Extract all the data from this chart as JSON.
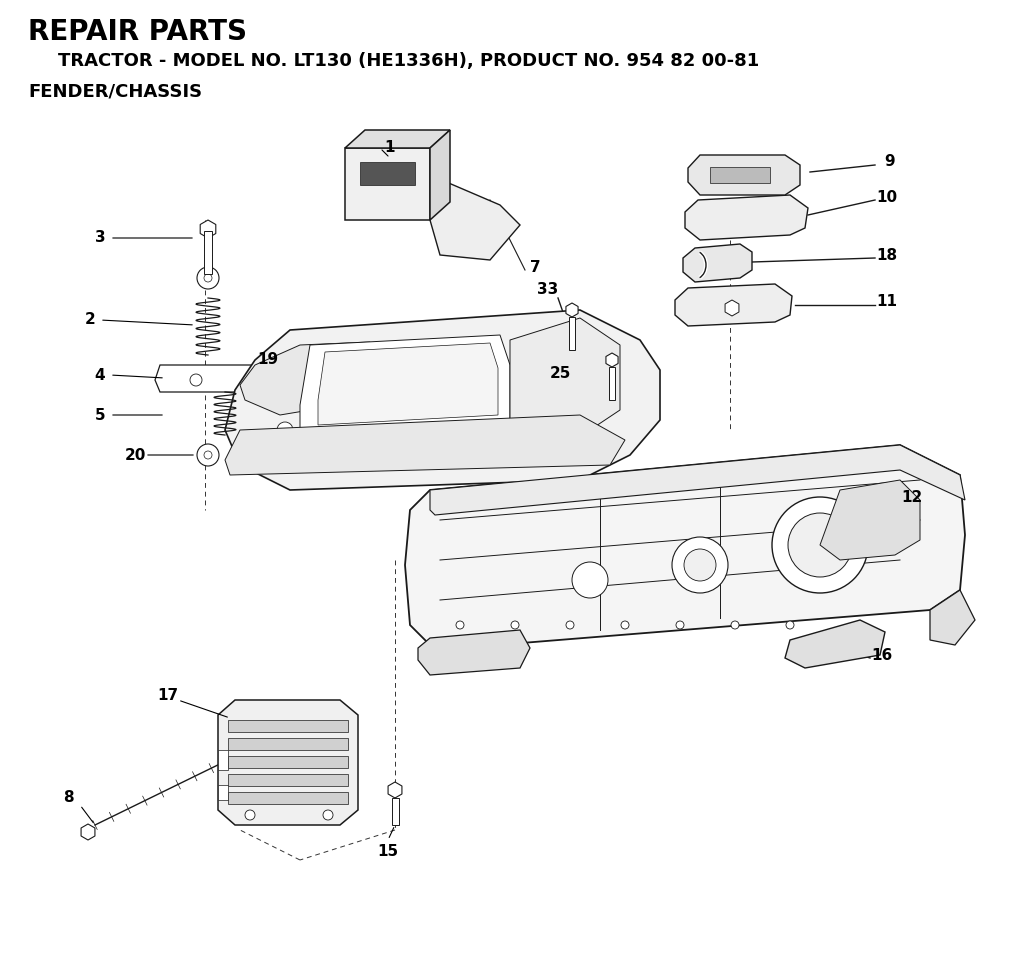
{
  "title": "REPAIR PARTS",
  "subtitle": "TRACTOR - MODEL NO. LT130 (HE1336H), PRODUCT NO. 954 82 00-81",
  "section": "FENDER/CHASSIS",
  "bg_color": "#ffffff",
  "text_color": "#000000",
  "title_fontsize": 20,
  "subtitle_fontsize": 13,
  "section_fontsize": 13,
  "lc": "#1a1a1a",
  "lw_main": 1.0,
  "lw_thin": 0.6,
  "lw_thick": 1.3
}
